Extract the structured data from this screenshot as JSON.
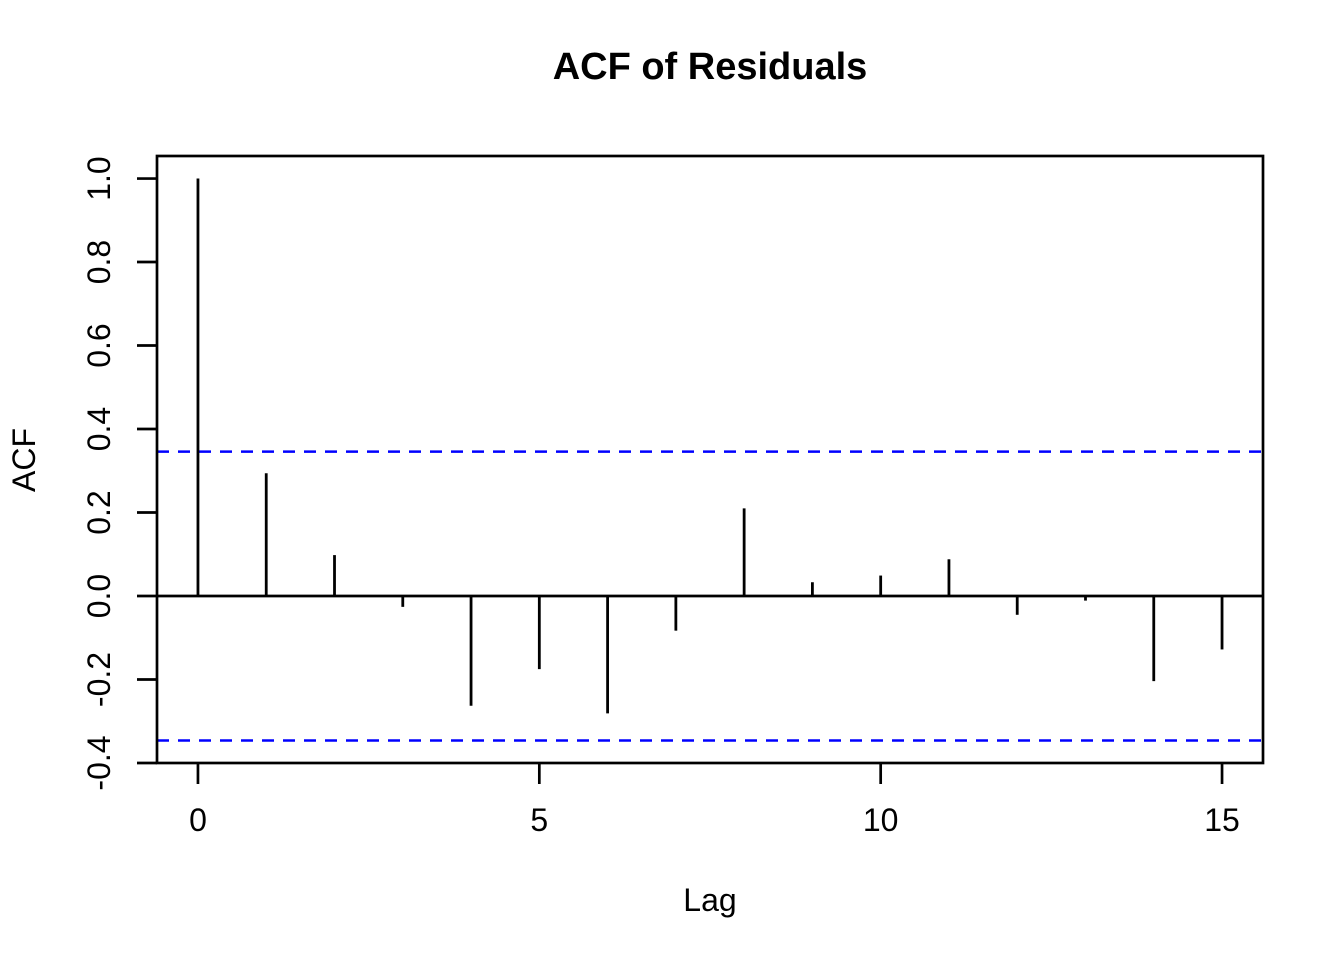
{
  "chart_data": {
    "type": "bar",
    "variant": "acf-stem-plot",
    "title": "ACF of Residuals",
    "xlabel": "Lag",
    "ylabel": "ACF",
    "x": [
      0,
      1,
      2,
      3,
      4,
      5,
      6,
      7,
      8,
      9,
      10,
      11,
      12,
      13,
      14,
      15
    ],
    "values": [
      1.0,
      0.294,
      0.098,
      -0.026,
      -0.263,
      -0.175,
      -0.281,
      -0.083,
      0.21,
      0.033,
      0.049,
      0.088,
      -0.045,
      -0.011,
      -0.204,
      -0.128
    ],
    "confidence_bounds": {
      "upper": 0.346,
      "lower": -0.346,
      "line_style": "dashed",
      "color": "#0000FF"
    },
    "x_ticks": [
      {
        "v": 0,
        "label": "0"
      },
      {
        "v": 5,
        "label": "5"
      },
      {
        "v": 10,
        "label": "10"
      },
      {
        "v": 15,
        "label": "15"
      }
    ],
    "y_ticks": [
      {
        "v": -0.4,
        "label": "-0.4"
      },
      {
        "v": -0.2,
        "label": "-0.2"
      },
      {
        "v": 0.0,
        "label": "0.0"
      },
      {
        "v": 0.2,
        "label": "0.2"
      },
      {
        "v": 0.4,
        "label": "0.4"
      },
      {
        "v": 0.6,
        "label": "0.6"
      },
      {
        "v": 0.8,
        "label": "0.8"
      },
      {
        "v": 1.0,
        "label": "1.0"
      }
    ],
    "xlim": [
      -0.6,
      15.6
    ],
    "ylim": [
      -0.4,
      1.054
    ],
    "grid": false,
    "legend": null,
    "zero_line": true,
    "colors": {
      "bar": "#000000",
      "axis": "#000000",
      "conf_line": "#0000FF",
      "background": "#FFFFFF"
    }
  }
}
